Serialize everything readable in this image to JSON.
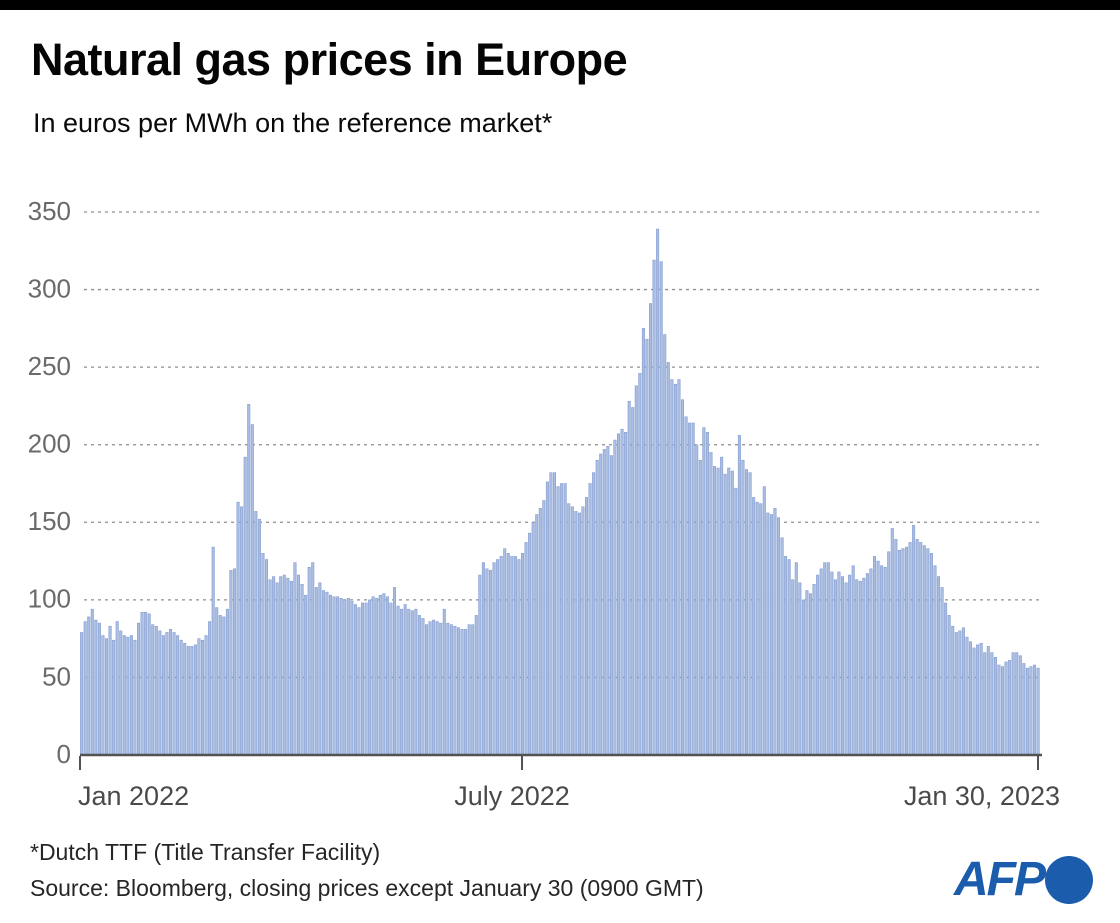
{
  "header": {
    "title": "Natural gas prices in Europe",
    "subtitle": "In euros per MWh on the reference market*"
  },
  "footer": {
    "footnote": "*Dutch TTF (Title Transfer Facility)",
    "source": "Source: Bloomberg, closing prices except January 30 (0900 GMT)"
  },
  "logo": {
    "text": "AFP",
    "color": "#1b5cad"
  },
  "colors": {
    "top_bar": "#000000",
    "bar_fill": "#aabee3",
    "bar_stroke": "#7f98cc",
    "grid": "#8f8f8f",
    "y_label": "#6a6a6a",
    "x_label": "#4a4a4a",
    "baseline": "#515156"
  },
  "chart_data": {
    "type": "bar",
    "title": "Natural gas prices in Europe",
    "ylabel": "euros per MWh",
    "series_name": "Dutch TTF daily closing price",
    "ylim": [
      0,
      350
    ],
    "yticks": [
      0,
      50,
      100,
      150,
      200,
      250,
      300,
      350
    ],
    "grid": "horizontal-dashed",
    "x_ticks": [
      {
        "label": "Jan 2022",
        "pos": 0.0
      },
      {
        "label": "July 2022",
        "pos": 0.4614
      },
      {
        "label": "Jan 30, 2023",
        "pos": 1.0
      }
    ],
    "values": [
      79,
      86,
      89,
      94,
      87,
      85,
      77,
      75,
      83,
      74,
      86,
      80,
      77,
      76,
      77,
      74,
      85,
      92,
      92,
      91,
      84,
      83,
      80,
      77,
      79,
      81,
      79,
      77,
      74,
      72,
      70,
      70,
      71,
      75,
      74,
      77,
      86,
      134,
      95,
      90,
      89,
      94,
      119,
      120,
      163,
      160,
      192,
      226,
      213,
      157,
      152,
      130,
      126,
      113,
      115,
      111,
      115,
      116,
      114,
      112,
      124,
      116,
      110,
      103,
      121,
      124,
      108,
      111,
      106,
      105,
      103,
      102,
      102,
      101,
      100,
      101,
      99,
      97,
      95,
      98,
      98,
      100,
      102,
      101,
      103,
      104,
      102,
      98,
      108,
      96,
      94,
      97,
      94,
      93,
      94,
      90,
      88,
      84,
      86,
      87,
      86,
      85,
      94,
      85,
      84,
      83,
      82,
      81,
      81,
      84,
      84,
      90,
      116,
      124,
      120,
      119,
      124,
      126,
      128,
      133,
      130,
      128,
      128,
      126,
      130,
      137,
      143,
      150,
      155,
      159,
      164,
      176,
      182,
      182,
      173,
      175,
      175,
      162,
      160,
      157,
      156,
      160,
      166,
      175,
      182,
      190,
      194,
      197,
      199,
      193,
      203,
      207,
      210,
      208,
      228,
      224,
      238,
      246,
      275,
      268,
      291,
      319,
      339,
      318,
      271,
      253,
      242,
      239,
      242,
      229,
      218,
      214,
      214,
      200,
      190,
      211,
      208,
      195,
      186,
      185,
      192,
      181,
      185,
      183,
      172,
      206,
      190,
      184,
      182,
      166,
      163,
      162,
      173,
      156,
      155,
      159,
      153,
      140,
      128,
      126,
      113,
      124,
      111,
      100,
      106,
      104,
      110,
      116,
      120,
      124,
      124,
      118,
      113,
      118,
      115,
      111,
      116,
      122,
      113,
      112,
      114,
      117,
      120,
      128,
      125,
      122,
      121,
      131,
      146,
      139,
      132,
      133,
      134,
      137,
      148,
      139,
      137,
      135,
      133,
      130,
      122,
      115,
      108,
      98,
      90,
      83,
      79,
      80,
      82,
      76,
      73,
      69,
      71,
      72,
      66,
      70,
      66,
      63,
      58,
      57,
      60,
      61,
      66,
      66,
      64,
      59,
      56,
      57,
      58,
      56
    ]
  }
}
